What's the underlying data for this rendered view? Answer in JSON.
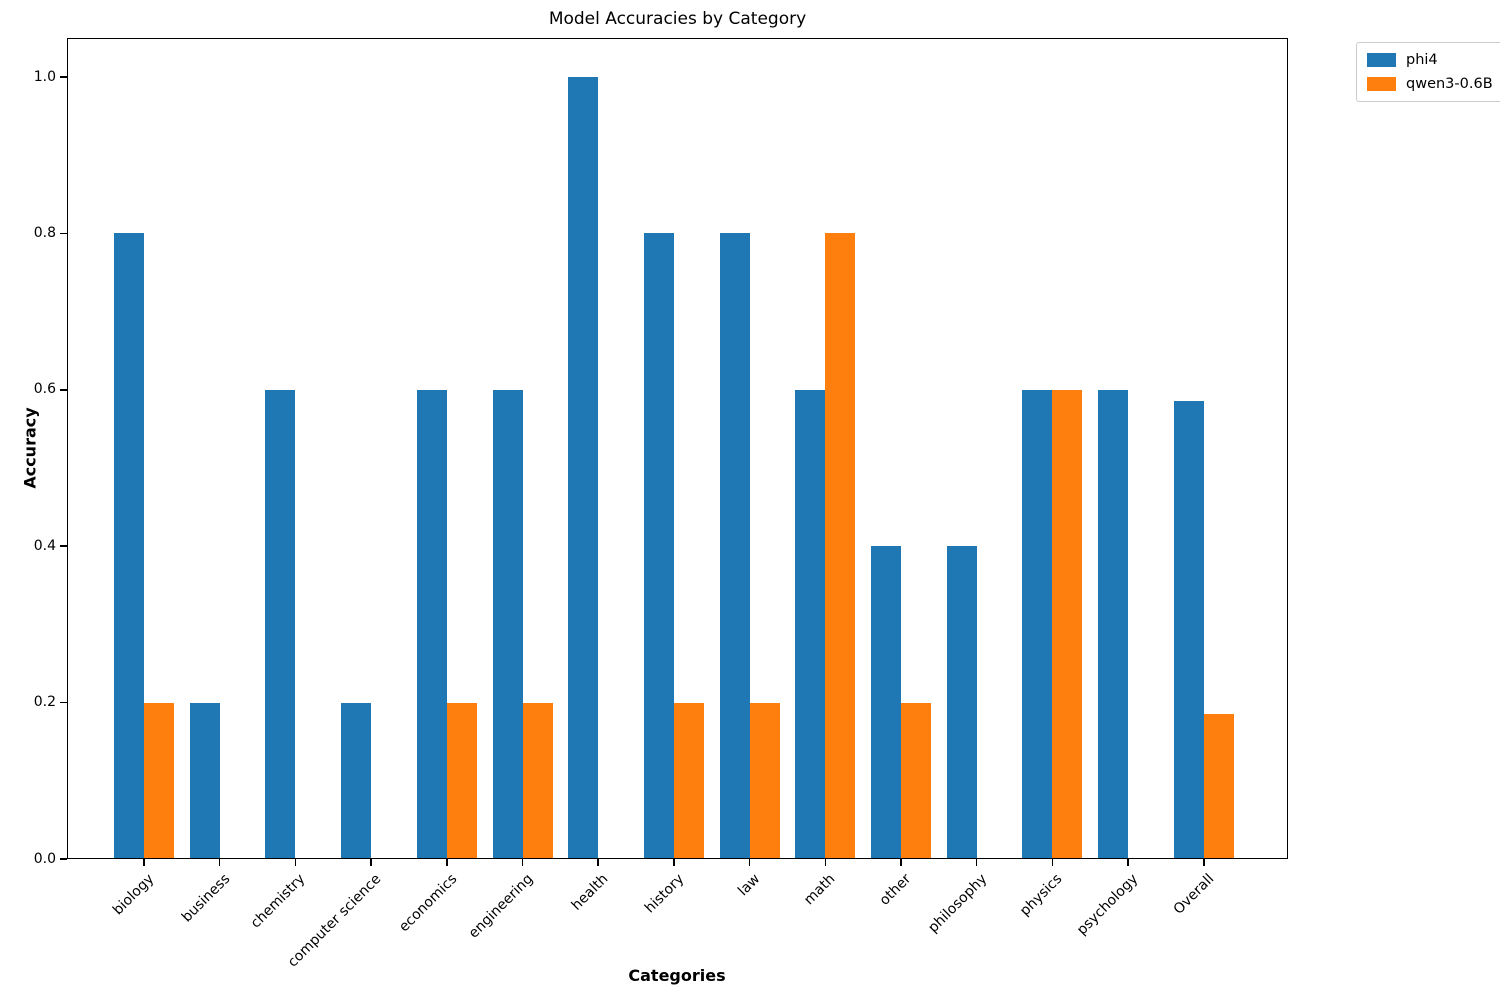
{
  "title": "Model Accuracies by Category",
  "chart_data": {
    "type": "bar",
    "title": "Model Accuracies by Category",
    "xlabel": "Categories",
    "ylabel": "Accuracy",
    "categories": [
      "biology",
      "business",
      "chemistry",
      "computer science",
      "economics",
      "engineering",
      "health",
      "history",
      "law",
      "math",
      "other",
      "philosophy",
      "physics",
      "psychology",
      "Overall"
    ],
    "series": [
      {
        "name": "phi4",
        "color": "#1f77b4",
        "values": [
          0.8,
          0.2,
          0.6,
          0.2,
          0.6,
          0.6,
          1.0,
          0.8,
          0.8,
          0.6,
          0.4,
          0.4,
          0.6,
          0.6,
          0.586
        ]
      },
      {
        "name": "qwen3-0.6B",
        "color": "#ff7f0e",
        "values": [
          0.2,
          0.0,
          0.0,
          0.0,
          0.2,
          0.2,
          0.0,
          0.2,
          0.2,
          0.8,
          0.2,
          0.0,
          0.6,
          0.0,
          0.186
        ]
      }
    ],
    "ylim": [
      0,
      1.05
    ],
    "yticks": [
      0.0,
      0.2,
      0.4,
      0.6,
      0.8,
      1.0
    ],
    "ytick_labels": [
      "0.0",
      "0.2",
      "0.4",
      "0.6",
      "0.8",
      "1.0"
    ],
    "grid": false,
    "legend_position": "outside-top-right",
    "bar_width_fraction": 0.4
  },
  "legend": {
    "entries": [
      "phi4",
      "qwen3-0.6B"
    ]
  }
}
